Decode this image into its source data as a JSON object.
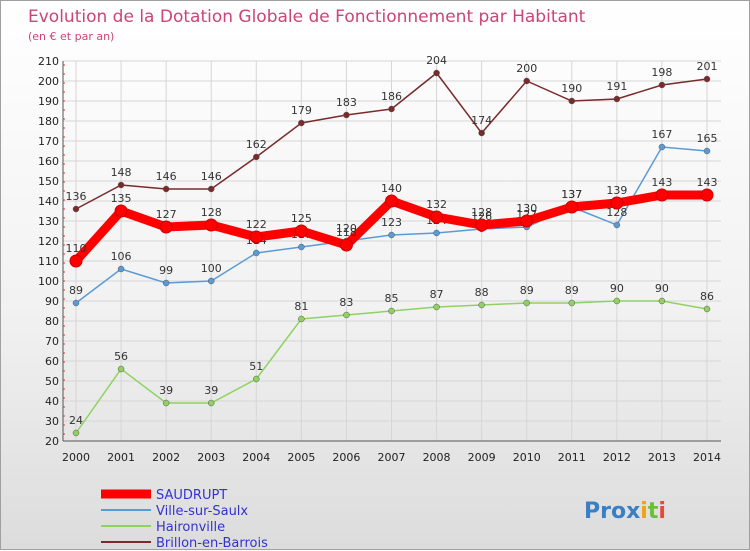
{
  "chart_data": {
    "type": "line",
    "title": "Evolution de la Dotation Globale de Fonctionnement par Habitant",
    "subtitle": "(en € et par an)",
    "x": [
      "2000",
      "2001",
      "2002",
      "2003",
      "2004",
      "2005",
      "2006",
      "2007",
      "2008",
      "2009",
      "2010",
      "2011",
      "2012",
      "2013",
      "2014"
    ],
    "ylim": [
      20,
      210
    ],
    "yticks": [
      20,
      30,
      40,
      50,
      60,
      70,
      80,
      90,
      100,
      110,
      120,
      130,
      140,
      150,
      160,
      170,
      180,
      190,
      200,
      210
    ],
    "grid": true,
    "legend_position": "bottom-left",
    "series": [
      {
        "name": "SAUDRUPT",
        "color": "#ff0000",
        "thick": true,
        "values": [
          110,
          135,
          127,
          128,
          122,
          125,
          118,
          140,
          132,
          128,
          130,
          137,
          139,
          143,
          143
        ]
      },
      {
        "name": "Ville-sur-Saulx",
        "color": "#5b9bd5",
        "values": [
          89,
          106,
          99,
          100,
          114,
          117,
          120,
          123,
          124,
          126,
          127,
          137,
          128,
          167,
          165
        ]
      },
      {
        "name": "Haironville",
        "color": "#8fd262",
        "values": [
          24,
          56,
          39,
          39,
          51,
          81,
          83,
          85,
          87,
          88,
          89,
          89,
          90,
          90,
          86
        ]
      },
      {
        "name": "Brillon-en-Barrois",
        "color": "#7a2a2a",
        "values": [
          136,
          148,
          146,
          146,
          162,
          179,
          183,
          186,
          204,
          174,
          200,
          190,
          191,
          198,
          201
        ]
      }
    ]
  },
  "logo": {
    "text": "Prox",
    "letter_i1": "i",
    "letter_t": "t",
    "letter_i2": "i"
  }
}
